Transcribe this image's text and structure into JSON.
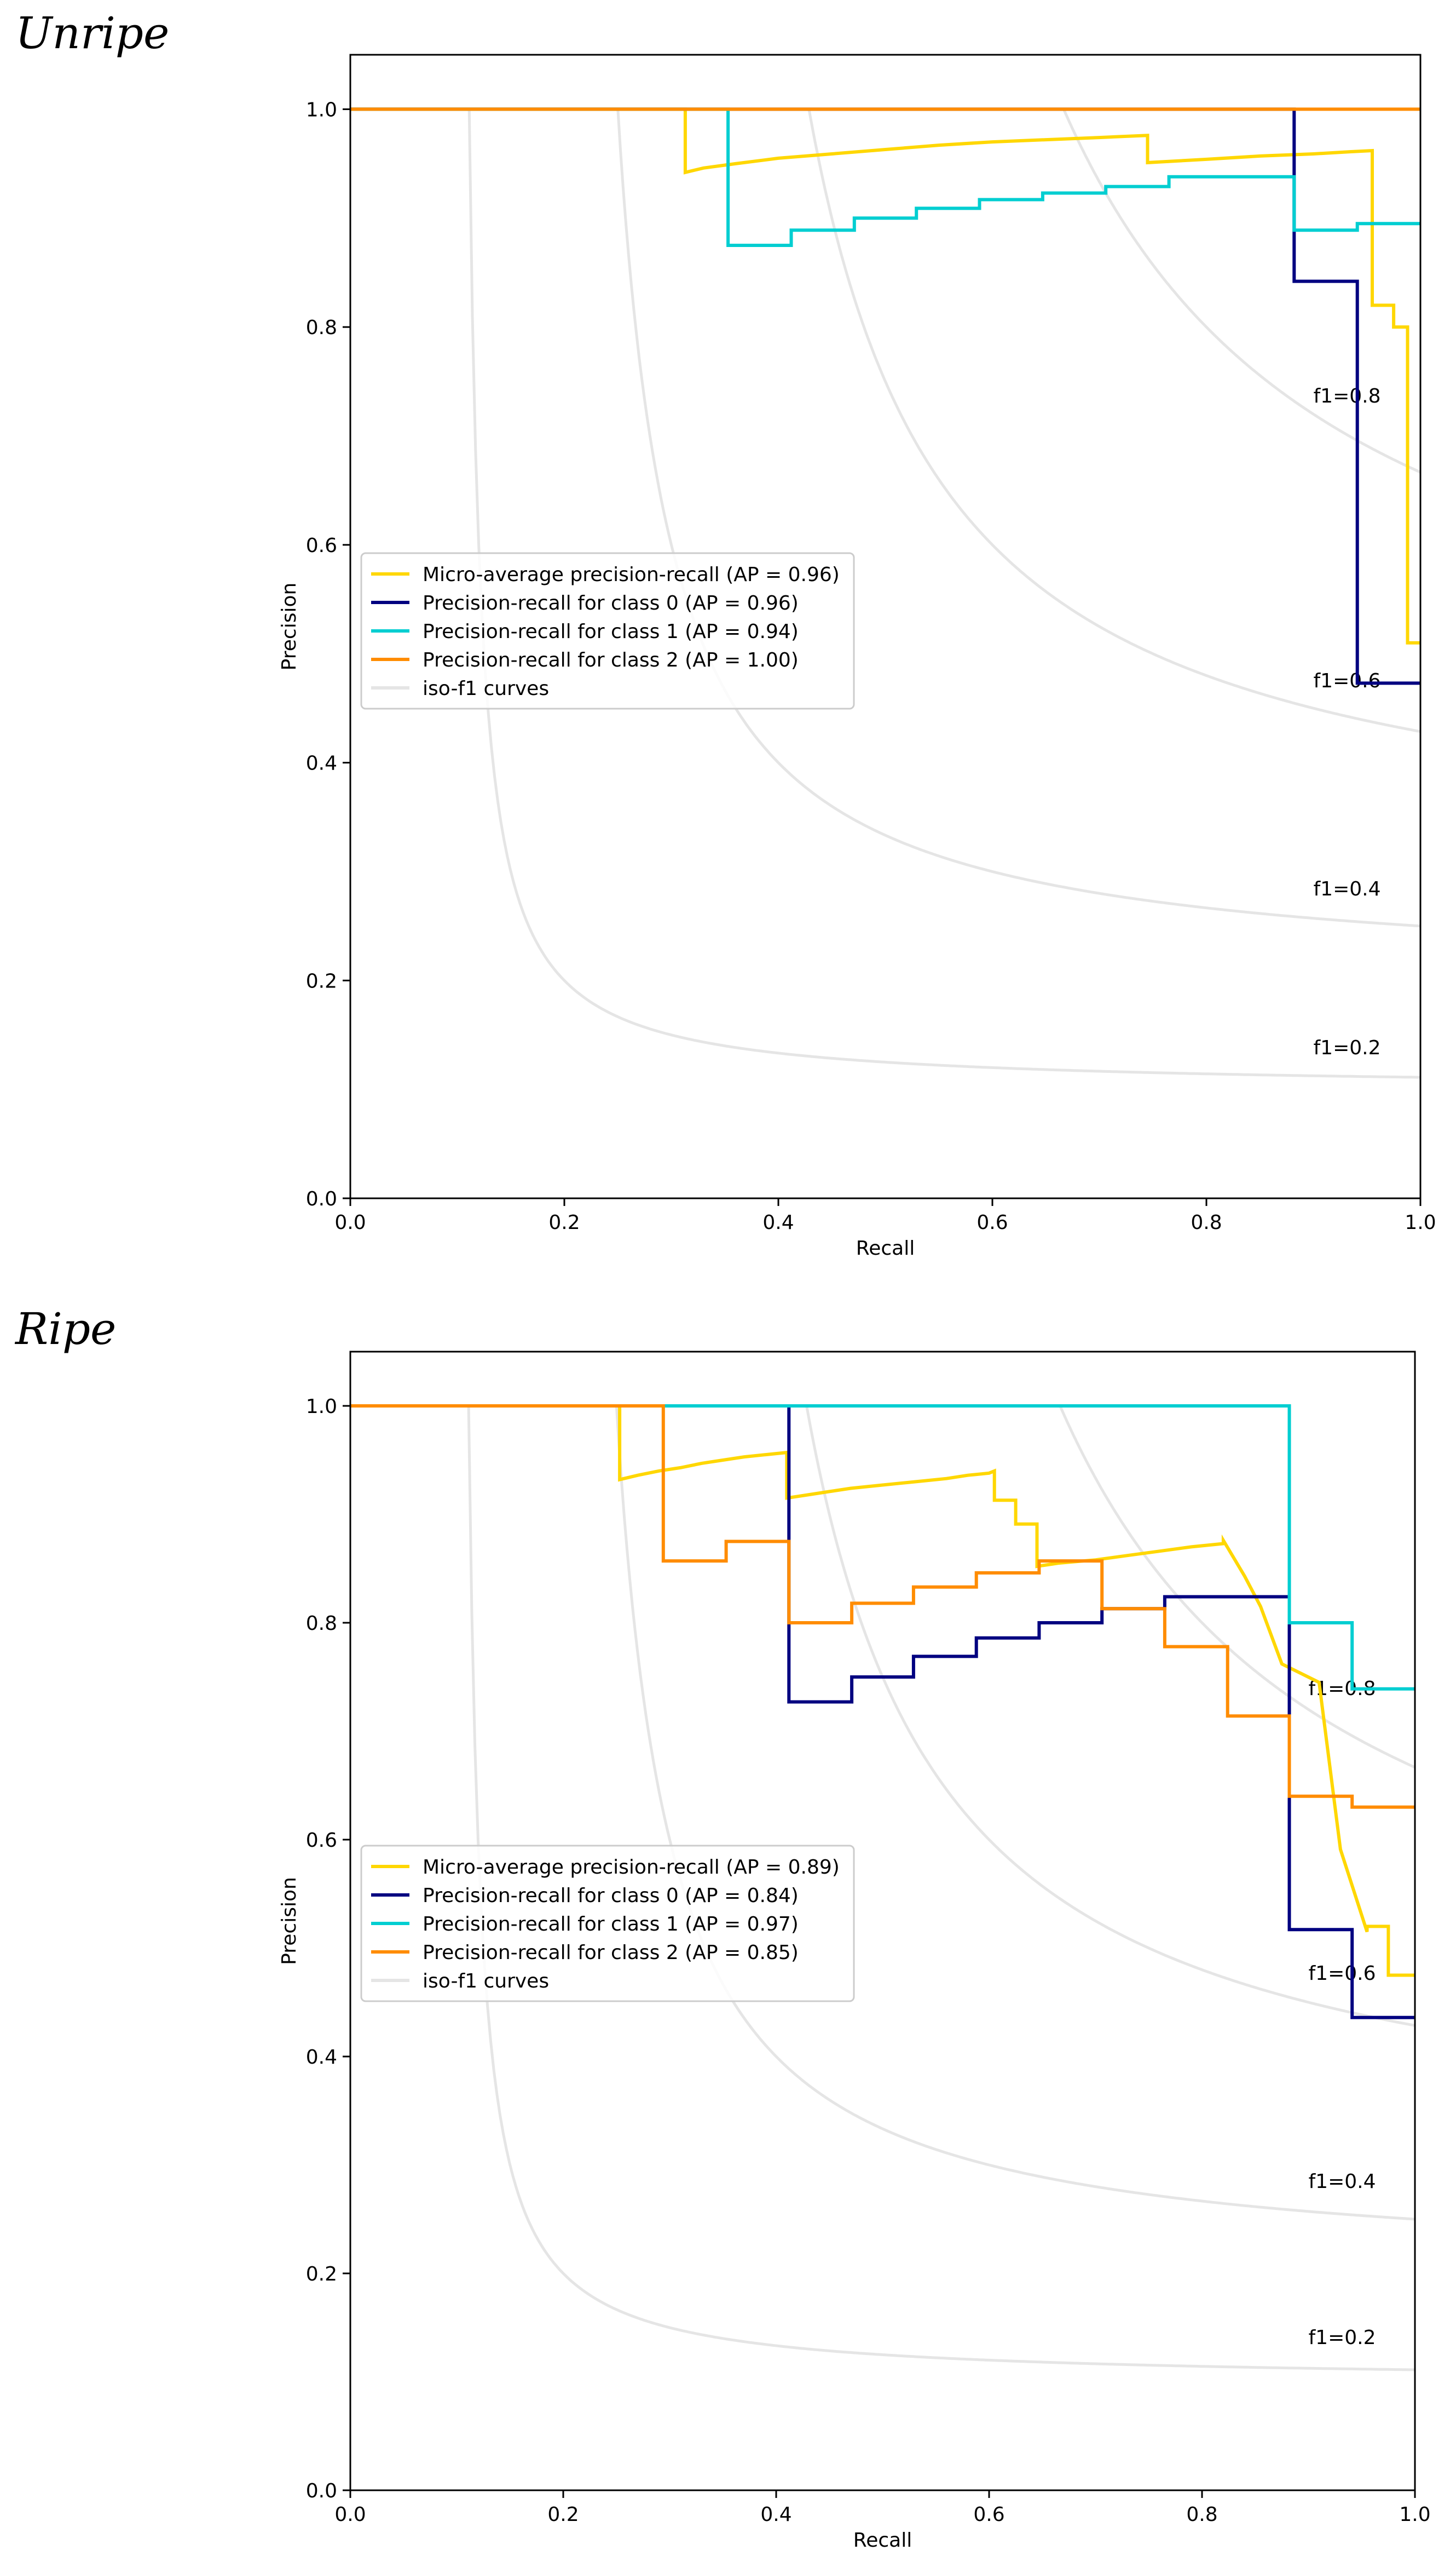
{
  "chart_data": [
    {
      "type": "line",
      "title": "Unripe",
      "xlabel": "Recall",
      "ylabel": "Precision",
      "xlim": [
        0,
        1
      ],
      "ylim": [
        0,
        1.05
      ],
      "xticks": [
        "0.0",
        "0.2",
        "0.4",
        "0.6",
        "0.8",
        "1.0"
      ],
      "yticks": [
        "0.0",
        "0.2",
        "0.4",
        "0.6",
        "0.8",
        "1.0"
      ],
      "legend_position": "center-left",
      "iso_f1": [
        0.2,
        0.4,
        0.6,
        0.8
      ],
      "iso_labels": [
        "f1=0.2",
        "f1=0.4",
        "f1=0.6",
        "f1=0.8"
      ],
      "legend_iso": "iso-f1 curves",
      "series": [
        {
          "name": "Micro-average precision-recall (AP = 0.96)",
          "color": "#FFD700",
          "x": [
            0,
            0.313,
            0.313,
            0.33,
            0.36,
            0.4,
            0.45,
            0.5,
            0.55,
            0.6,
            0.65,
            0.7,
            0.745,
            0.745,
            0.8,
            0.85,
            0.9,
            0.935,
            0.955,
            0.955,
            0.975,
            0.975,
            0.988,
            0.988,
            1.0
          ],
          "y": [
            1.0,
            1.0,
            0.942,
            0.946,
            0.95,
            0.955,
            0.959,
            0.963,
            0.967,
            0.97,
            0.972,
            0.974,
            0.976,
            0.951,
            0.954,
            0.957,
            0.959,
            0.961,
            0.962,
            0.82,
            0.82,
            0.8,
            0.8,
            0.51,
            0.51
          ]
        },
        {
          "name": "Precision-recall for class 0 (AP = 0.96)",
          "color": "#000080",
          "x": [
            0,
            0.882,
            0.882,
            0.941,
            0.941,
            1.0
          ],
          "y": [
            1.0,
            1.0,
            0.842,
            0.842,
            0.473,
            0.473
          ]
        },
        {
          "name": "Precision-recall for class 1 (AP = 0.94)",
          "color": "#00CED1",
          "x": [
            0,
            0.353,
            0.353,
            0.412,
            0.412,
            0.471,
            0.471,
            0.529,
            0.529,
            0.588,
            0.588,
            0.647,
            0.647,
            0.706,
            0.706,
            0.765,
            0.765,
            0.882,
            0.882,
            0.941,
            0.941,
            1.0
          ],
          "y": [
            1.0,
            1.0,
            0.875,
            0.875,
            0.889,
            0.889,
            0.9,
            0.9,
            0.909,
            0.909,
            0.917,
            0.917,
            0.923,
            0.923,
            0.929,
            0.929,
            0.938,
            0.938,
            0.889,
            0.889,
            0.895,
            0.895
          ]
        },
        {
          "name": "Precision-recall for class 2 (AP = 1.00)",
          "color": "#FF8C00",
          "x": [
            0,
            1.0
          ],
          "y": [
            1.0,
            1.0
          ]
        }
      ]
    },
    {
      "type": "line",
      "title": "Ripe",
      "xlabel": "Recall",
      "ylabel": "Precision",
      "xlim": [
        0,
        1
      ],
      "ylim": [
        0,
        1.05
      ],
      "xticks": [
        "0.0",
        "0.2",
        "0.4",
        "0.6",
        "0.8",
        "1.0"
      ],
      "yticks": [
        "0.0",
        "0.2",
        "0.4",
        "0.6",
        "0.8",
        "1.0"
      ],
      "legend_position": "center-left",
      "iso_f1": [
        0.2,
        0.4,
        0.6,
        0.8
      ],
      "iso_labels": [
        "f1=0.2",
        "f1=0.4",
        "f1=0.6",
        "f1=0.8"
      ],
      "legend_iso": "iso-f1 curves",
      "series": [
        {
          "name": "Micro-average precision-recall (AP = 0.89)",
          "color": "#FFD700",
          "x": [
            0,
            0.253,
            0.253,
            0.27,
            0.29,
            0.31,
            0.33,
            0.35,
            0.37,
            0.39,
            0.41,
            0.41,
            0.43,
            0.45,
            0.47,
            0.5,
            0.53,
            0.56,
            0.58,
            0.6,
            0.605,
            0.605,
            0.625,
            0.625,
            0.645,
            0.645,
            0.665,
            0.7,
            0.73,
            0.76,
            0.79,
            0.82,
            0.82,
            0.84,
            0.84,
            0.855,
            0.855,
            0.875,
            0.875,
            0.91,
            0.91,
            0.93,
            0.93,
            0.955,
            0.955,
            0.975,
            0.975,
            1.0
          ],
          "y": [
            1.0,
            1.0,
            0.932,
            0.936,
            0.94,
            0.943,
            0.947,
            0.95,
            0.953,
            0.955,
            0.957,
            0.915,
            0.918,
            0.921,
            0.924,
            0.927,
            0.93,
            0.933,
            0.936,
            0.938,
            0.94,
            0.913,
            0.913,
            0.891,
            0.891,
            0.852,
            0.855,
            0.858,
            0.862,
            0.866,
            0.87,
            0.873,
            0.876,
            0.843,
            0.843,
            0.815,
            0.815,
            0.762,
            0.762,
            0.745,
            0.745,
            0.591,
            0.591,
            0.515,
            0.52,
            0.52,
            0.475,
            0.475
          ]
        },
        {
          "name": "Precision-recall for class 0 (AP = 0.84)",
          "color": "#000080",
          "x": [
            0,
            0.412,
            0.412,
            0.471,
            0.471,
            0.529,
            0.529,
            0.588,
            0.588,
            0.647,
            0.647,
            0.706,
            0.706,
            0.765,
            0.765,
            0.882,
            0.882,
            0.941,
            0.941,
            1.0
          ],
          "y": [
            1.0,
            1.0,
            0.727,
            0.727,
            0.75,
            0.75,
            0.769,
            0.769,
            0.786,
            0.786,
            0.8,
            0.8,
            0.813,
            0.813,
            0.824,
            0.824,
            0.517,
            0.517,
            0.436,
            0.436
          ]
        },
        {
          "name": "Precision-recall for class 1 (AP = 0.97)",
          "color": "#00CED1",
          "x": [
            0,
            0.882,
            0.882,
            0.941,
            0.941,
            1.0
          ],
          "y": [
            1.0,
            1.0,
            0.8,
            0.8,
            0.739,
            0.739
          ]
        },
        {
          "name": "Precision-recall for class 2 (AP = 0.85)",
          "color": "#FF8C00",
          "x": [
            0,
            0.294,
            0.294,
            0.353,
            0.353,
            0.412,
            0.412,
            0.471,
            0.471,
            0.529,
            0.529,
            0.588,
            0.588,
            0.647,
            0.647,
            0.706,
            0.706,
            0.765,
            0.765,
            0.824,
            0.824,
            0.882,
            0.882,
            0.941,
            0.941,
            1.0
          ],
          "y": [
            1.0,
            1.0,
            0.857,
            0.857,
            0.875,
            0.875,
            0.8,
            0.8,
            0.818,
            0.818,
            0.833,
            0.833,
            0.846,
            0.846,
            0.857,
            0.857,
            0.813,
            0.813,
            0.778,
            0.778,
            0.714,
            0.714,
            0.64,
            0.64,
            0.63,
            0.63
          ]
        }
      ]
    }
  ]
}
